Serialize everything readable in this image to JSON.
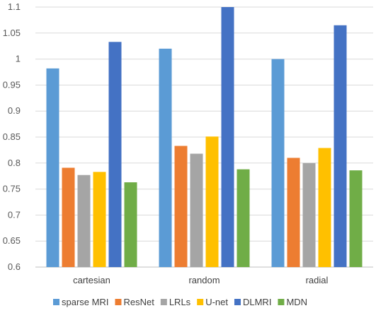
{
  "chart_data": {
    "type": "bar",
    "title": "",
    "xlabel": "",
    "ylabel": "",
    "categories": [
      "cartesian",
      "random",
      "radial"
    ],
    "ylim": [
      0.6,
      1.1
    ],
    "yticks": [
      "0.6",
      "0.65",
      "0.7",
      "0.75",
      "0.8",
      "0.85",
      "0.9",
      "0.95",
      "1",
      "1.05",
      "1.1"
    ],
    "grid": true,
    "legend_position": "bottom",
    "series": [
      {
        "name": "sparse MRI",
        "color": "#5B9BD5",
        "values": [
          0.982,
          1.02,
          1.0
        ]
      },
      {
        "name": "ResNet",
        "color": "#ED7D31",
        "values": [
          0.791,
          0.833,
          0.81
        ]
      },
      {
        "name": "LRLs",
        "color": "#A5A5A5",
        "values": [
          0.777,
          0.818,
          0.8
        ]
      },
      {
        "name": "U-net",
        "color": "#FFC000",
        "values": [
          0.783,
          0.851,
          0.829
        ]
      },
      {
        "name": "DLMRI",
        "color": "#4472C4",
        "values": [
          1.033,
          1.1,
          1.065
        ]
      },
      {
        "name": "MDN",
        "color": "#70AD47",
        "values": [
          0.763,
          0.788,
          0.786
        ]
      }
    ]
  }
}
